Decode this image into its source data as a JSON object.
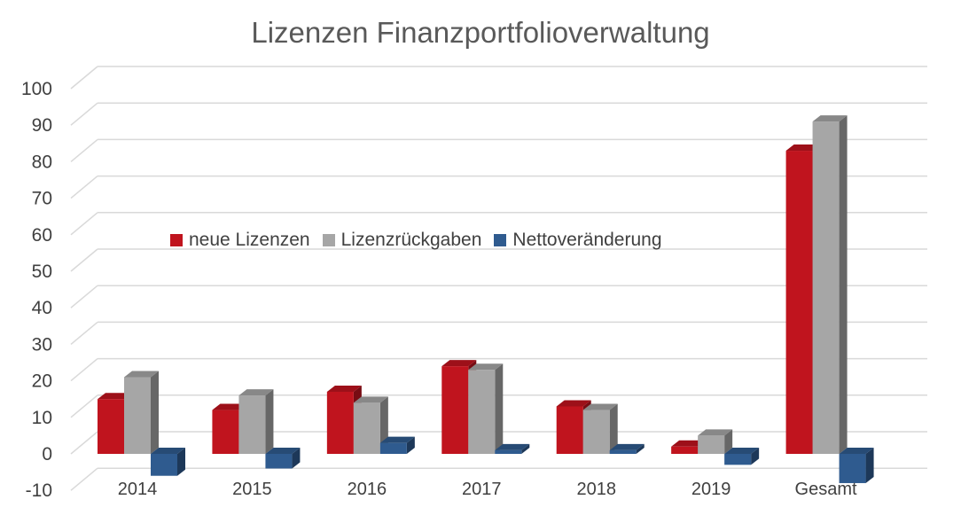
{
  "chart_data": {
    "type": "bar",
    "title": "Lizenzen Finanzportfolioverwaltung",
    "categories": [
      "2014",
      "2015",
      "2016",
      "2017",
      "2018",
      "2019",
      "Gesamt"
    ],
    "series": [
      {
        "name": "neue Lizenzen",
        "color": "#C0141E",
        "values": [
          15,
          12,
          17,
          24,
          13,
          2,
          83
        ]
      },
      {
        "name": "Lizenzrückgaben",
        "color": "#A6A6A6",
        "values": [
          21,
          16,
          14,
          23,
          12,
          5,
          91
        ]
      },
      {
        "name": "Nettoveränderung",
        "color": "#2F5B8F",
        "values": [
          -6,
          -4,
          3,
          1,
          1,
          -3,
          -8
        ]
      }
    ],
    "yticks": [
      "100",
      "90",
      "80",
      "70",
      "60",
      "50",
      "40",
      "30",
      "20",
      "10",
      "0",
      "-10"
    ],
    "ylim": [
      -10,
      100
    ],
    "grid": true,
    "legend_position": "inside-center-left",
    "xlabel": "",
    "ylabel": ""
  }
}
